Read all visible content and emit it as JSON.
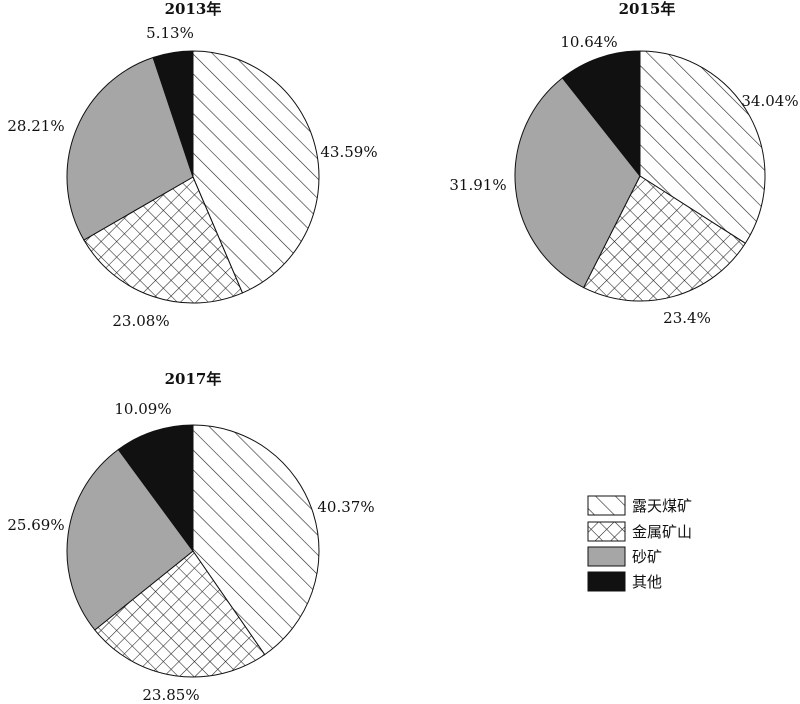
{
  "chart_data": [
    {
      "type": "pie",
      "title": "2013年",
      "values": [
        43.59,
        23.08,
        28.21,
        5.13
      ],
      "labels": [
        "43.59%",
        "23.08%",
        "28.21%",
        "5.13%"
      ]
    },
    {
      "type": "pie",
      "title": "2015年",
      "values": [
        34.04,
        23.4,
        31.91,
        10.64
      ],
      "labels": [
        "34.04%",
        "23.4%",
        "31.91%",
        "10.64%"
      ]
    },
    {
      "type": "pie",
      "title": "2017年",
      "values": [
        40.37,
        23.85,
        25.69,
        10.09
      ],
      "labels": [
        "40.37%",
        "23.85%",
        "25.69%",
        "10.09%"
      ]
    }
  ],
  "legend": {
    "placement": "bottom-right",
    "items": [
      {
        "name": "露天煤矿",
        "fill": "diagonal-hatch",
        "color": "#ffffff"
      },
      {
        "name": "金属矿山",
        "fill": "cross-hatch",
        "color": "#ffffff"
      },
      {
        "name": "砂矿",
        "fill": "solid",
        "color": "#a6a6a6"
      },
      {
        "name": "其他",
        "fill": "solid",
        "color": "#111111"
      }
    ]
  }
}
